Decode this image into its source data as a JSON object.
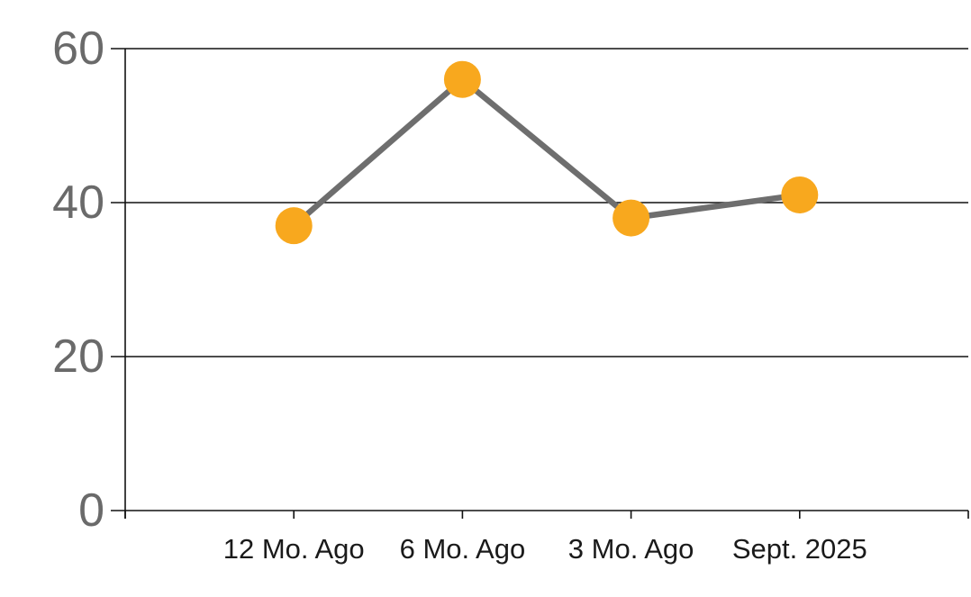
{
  "chart_data": {
    "type": "line",
    "categories": [
      "12 Mo. Ago",
      "6 Mo. Ago",
      "3 Mo. Ago",
      "Sept. 2025"
    ],
    "values": [
      37,
      56,
      38,
      41
    ],
    "ylim": [
      0,
      60
    ],
    "yticks": [
      0,
      20,
      40,
      60
    ],
    "grid": "horizontal gridlines at each y tick, extending full width",
    "legend": "none",
    "marker_style": "large filled circle",
    "colors": {
      "marker": "#F8A81E",
      "line": "#6E6E6E",
      "grid_axis": "#111111",
      "y_tick_label": "#6A6A6A",
      "x_tick_label": "#1A1A1A",
      "background": "#FFFFFF"
    }
  }
}
